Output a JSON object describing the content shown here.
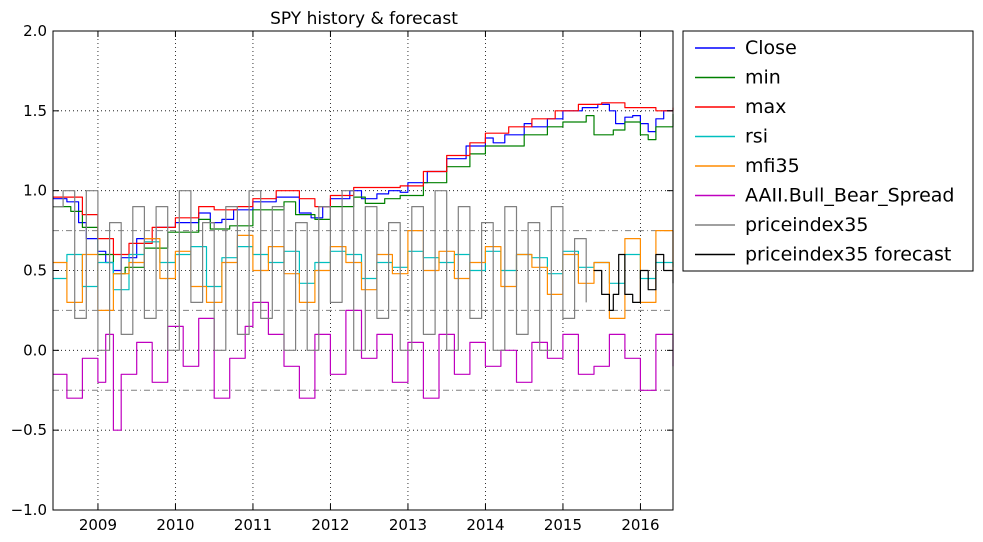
{
  "chart_data": {
    "type": "line",
    "title": "SPY history & forecast",
    "xlabel": "",
    "ylabel": "",
    "xlim": [
      2008.42,
      2016.42
    ],
    "ylim": [
      -1.0,
      2.0
    ],
    "x_ticks": [
      2009,
      2010,
      2011,
      2012,
      2013,
      2014,
      2015,
      2016
    ],
    "x_tick_labels": [
      "2009",
      "2010",
      "2011",
      "2012",
      "2013",
      "2014",
      "2015",
      "2016"
    ],
    "y_ticks": [
      -1.0,
      -0.5,
      0.0,
      0.5,
      1.0,
      1.5,
      2.0
    ],
    "y_tick_labels": [
      "−1.0",
      "−0.5",
      "0.0",
      "0.5",
      "1.0",
      "1.5",
      "2.0"
    ],
    "grid": true,
    "legend_position": "outside-right-top",
    "reference_lines": [
      -0.25,
      0.25,
      0.75
    ],
    "series": [
      {
        "name": "Close",
        "color": "#0000ff",
        "x": [
          2008.42,
          2008.6,
          2008.75,
          2008.85,
          2009.0,
          2009.1,
          2009.2,
          2009.3,
          2009.5,
          2009.75,
          2010.0,
          2010.3,
          2010.45,
          2010.6,
          2010.75,
          2011.0,
          2011.3,
          2011.6,
          2011.75,
          2011.9,
          2012.0,
          2012.25,
          2012.4,
          2012.6,
          2012.75,
          2012.9,
          2013.0,
          2013.25,
          2013.5,
          2013.75,
          2014.0,
          2014.1,
          2014.25,
          2014.5,
          2014.6,
          2014.8,
          2015.0,
          2015.25,
          2015.45,
          2015.6,
          2015.68,
          2015.8,
          2015.9,
          2016.0,
          2016.1,
          2016.2,
          2016.3,
          2016.42
        ],
        "y": [
          0.95,
          0.93,
          0.8,
          0.7,
          0.62,
          0.55,
          0.5,
          0.58,
          0.7,
          0.77,
          0.8,
          0.86,
          0.8,
          0.82,
          0.88,
          0.93,
          0.96,
          0.86,
          0.83,
          0.9,
          0.95,
          1.0,
          0.95,
          0.98,
          1.0,
          0.99,
          1.05,
          1.12,
          1.2,
          1.28,
          1.33,
          1.3,
          1.35,
          1.42,
          1.4,
          1.45,
          1.5,
          1.52,
          1.54,
          1.5,
          1.42,
          1.46,
          1.47,
          1.42,
          1.37,
          1.45,
          1.5,
          1.5
        ]
      },
      {
        "name": "min",
        "color": "#008000",
        "x": [
          2008.42,
          2008.65,
          2008.8,
          2009.0,
          2009.2,
          2009.35,
          2009.6,
          2009.9,
          2010.3,
          2010.45,
          2010.7,
          2011.0,
          2011.4,
          2011.55,
          2011.8,
          2012.0,
          2012.3,
          2012.45,
          2012.7,
          2012.9,
          2013.2,
          2013.5,
          2013.8,
          2014.0,
          2014.2,
          2014.5,
          2014.8,
          2015.0,
          2015.3,
          2015.4,
          2015.65,
          2015.8,
          2016.0,
          2016.1,
          2016.2,
          2016.42
        ],
        "y": [
          0.9,
          0.87,
          0.77,
          0.6,
          0.48,
          0.52,
          0.64,
          0.74,
          0.82,
          0.76,
          0.78,
          0.88,
          0.93,
          0.85,
          0.82,
          0.9,
          0.96,
          0.92,
          0.95,
          0.97,
          1.05,
          1.15,
          1.23,
          1.28,
          1.28,
          1.35,
          1.4,
          1.43,
          1.47,
          1.35,
          1.38,
          1.43,
          1.35,
          1.32,
          1.4,
          1.48
        ]
      },
      {
        "name": "max",
        "color": "#ff0000",
        "x": [
          2008.42,
          2008.55,
          2008.8,
          2009.0,
          2009.2,
          2009.4,
          2009.7,
          2010.0,
          2010.3,
          2010.5,
          2010.8,
          2011.0,
          2011.3,
          2011.6,
          2011.8,
          2012.0,
          2012.3,
          2012.6,
          2012.9,
          2013.2,
          2013.5,
          2013.8,
          2014.0,
          2014.3,
          2014.6,
          2014.9,
          2015.2,
          2015.5,
          2015.8,
          2016.0,
          2016.2,
          2016.42
        ],
        "y": [
          0.96,
          0.96,
          0.85,
          0.7,
          0.6,
          0.67,
          0.77,
          0.83,
          0.9,
          0.88,
          0.9,
          0.95,
          1.0,
          0.95,
          0.9,
          0.97,
          1.02,
          1.02,
          1.03,
          1.12,
          1.22,
          1.3,
          1.36,
          1.4,
          1.45,
          1.5,
          1.54,
          1.55,
          1.52,
          1.52,
          1.5,
          1.52
        ]
      },
      {
        "name": "rsi",
        "color": "#00bfbf",
        "x": [
          2008.42,
          2008.6,
          2008.8,
          2009.0,
          2009.2,
          2009.4,
          2009.6,
          2009.8,
          2010.0,
          2010.2,
          2010.4,
          2010.6,
          2010.8,
          2011.0,
          2011.2,
          2011.4,
          2011.6,
          2011.8,
          2012.0,
          2012.2,
          2012.4,
          2012.6,
          2012.8,
          2013.0,
          2013.2,
          2013.4,
          2013.6,
          2013.8,
          2014.0,
          2014.2,
          2014.4,
          2014.6,
          2014.8,
          2015.0,
          2015.2,
          2015.4,
          2015.6,
          2015.8,
          2016.0,
          2016.2,
          2016.42
        ],
        "y": [
          0.45,
          0.6,
          0.4,
          0.55,
          0.38,
          0.6,
          0.68,
          0.55,
          0.6,
          0.65,
          0.4,
          0.58,
          0.65,
          0.6,
          0.55,
          0.62,
          0.42,
          0.55,
          0.62,
          0.6,
          0.45,
          0.55,
          0.52,
          0.62,
          0.58,
          0.55,
          0.6,
          0.5,
          0.62,
          0.5,
          0.6,
          0.58,
          0.48,
          0.62,
          0.52,
          0.55,
          0.42,
          0.6,
          0.45,
          0.55,
          0.52
        ]
      },
      {
        "name": "mfi35",
        "color": "#ff8c00",
        "x": [
          2008.42,
          2008.6,
          2008.8,
          2009.0,
          2009.2,
          2009.4,
          2009.6,
          2009.8,
          2010.0,
          2010.2,
          2010.4,
          2010.6,
          2010.8,
          2011.0,
          2011.2,
          2011.4,
          2011.6,
          2011.8,
          2012.0,
          2012.2,
          2012.4,
          2012.6,
          2012.8,
          2013.0,
          2013.2,
          2013.4,
          2013.6,
          2013.8,
          2014.0,
          2014.2,
          2014.4,
          2014.6,
          2014.8,
          2015.0,
          2015.2,
          2015.4,
          2015.6,
          2015.8,
          2016.0,
          2016.2,
          2016.42
        ],
        "y": [
          0.55,
          0.3,
          0.6,
          0.25,
          0.48,
          0.55,
          0.7,
          0.45,
          0.62,
          0.4,
          0.3,
          0.55,
          0.72,
          0.5,
          0.65,
          0.48,
          0.3,
          0.5,
          0.65,
          0.55,
          0.38,
          0.6,
          0.48,
          0.75,
          0.5,
          0.62,
          0.45,
          0.55,
          0.65,
          0.4,
          0.6,
          0.52,
          0.35,
          0.6,
          0.42,
          0.55,
          0.2,
          0.7,
          0.3,
          0.75,
          0.5
        ]
      },
      {
        "name": "AAII.Bull_Bear_Spread",
        "color": "#bf00bf",
        "x": [
          2008.42,
          2008.6,
          2008.8,
          2009.0,
          2009.1,
          2009.2,
          2009.3,
          2009.5,
          2009.7,
          2009.9,
          2010.1,
          2010.3,
          2010.5,
          2010.7,
          2010.9,
          2011.0,
          2011.2,
          2011.4,
          2011.6,
          2011.8,
          2012.0,
          2012.2,
          2012.4,
          2012.6,
          2012.8,
          2013.0,
          2013.2,
          2013.4,
          2013.6,
          2013.8,
          2014.0,
          2014.2,
          2014.4,
          2014.6,
          2014.8,
          2015.0,
          2015.2,
          2015.4,
          2015.6,
          2015.8,
          2016.0,
          2016.2,
          2016.42
        ],
        "y": [
          -0.15,
          -0.3,
          -0.05,
          -0.2,
          0.1,
          -0.5,
          -0.15,
          0.05,
          -0.2,
          0.15,
          -0.1,
          0.2,
          -0.3,
          -0.05,
          0.15,
          0.3,
          0.1,
          -0.1,
          -0.3,
          0.1,
          -0.15,
          0.25,
          -0.05,
          0.1,
          -0.2,
          0.05,
          -0.3,
          0.1,
          -0.15,
          0.05,
          -0.1,
          0.0,
          -0.2,
          0.05,
          -0.05,
          0.1,
          -0.15,
          -0.1,
          0.1,
          -0.05,
          -0.25,
          0.1,
          -0.1
        ]
      },
      {
        "name": "priceindex35",
        "color": "#808080",
        "x": [
          2008.42,
          2008.55,
          2008.7,
          2008.85,
          2009.0,
          2009.15,
          2009.3,
          2009.45,
          2009.6,
          2009.75,
          2009.9,
          2010.05,
          2010.2,
          2010.35,
          2010.5,
          2010.65,
          2010.8,
          2010.95,
          2011.1,
          2011.25,
          2011.4,
          2011.55,
          2011.7,
          2011.85,
          2012.0,
          2012.15,
          2012.3,
          2012.45,
          2012.6,
          2012.75,
          2012.9,
          2013.05,
          2013.2,
          2013.35,
          2013.5,
          2013.65,
          2013.8,
          2013.95,
          2014.1,
          2014.25,
          2014.4,
          2014.55,
          2014.7,
          2014.85,
          2015.0,
          2015.15,
          2015.3
        ],
        "y": [
          0.9,
          1.0,
          0.2,
          1.0,
          0.0,
          0.8,
          0.1,
          0.9,
          0.2,
          0.9,
          0.0,
          1.0,
          0.3,
          0.8,
          0.0,
          0.9,
          0.1,
          1.0,
          0.2,
          0.9,
          0.0,
          0.8,
          0.0,
          0.9,
          0.3,
          1.0,
          0.0,
          0.9,
          0.2,
          0.8,
          0.0,
          0.9,
          0.1,
          1.0,
          0.0,
          0.9,
          0.2,
          0.8,
          0.0,
          0.9,
          0.1,
          0.8,
          0.0,
          0.9,
          0.2,
          0.7,
          0.3
        ]
      },
      {
        "name": "priceindex35 forecast",
        "color": "#000000",
        "x": [
          2015.4,
          2015.5,
          2015.6,
          2015.65,
          2015.72,
          2015.8,
          2015.9,
          2016.0,
          2016.1,
          2016.2,
          2016.3,
          2016.42
        ],
        "y": [
          0.5,
          0.35,
          0.25,
          0.35,
          0.6,
          0.35,
          0.3,
          0.5,
          0.38,
          0.6,
          0.5,
          0.42
        ]
      }
    ]
  }
}
